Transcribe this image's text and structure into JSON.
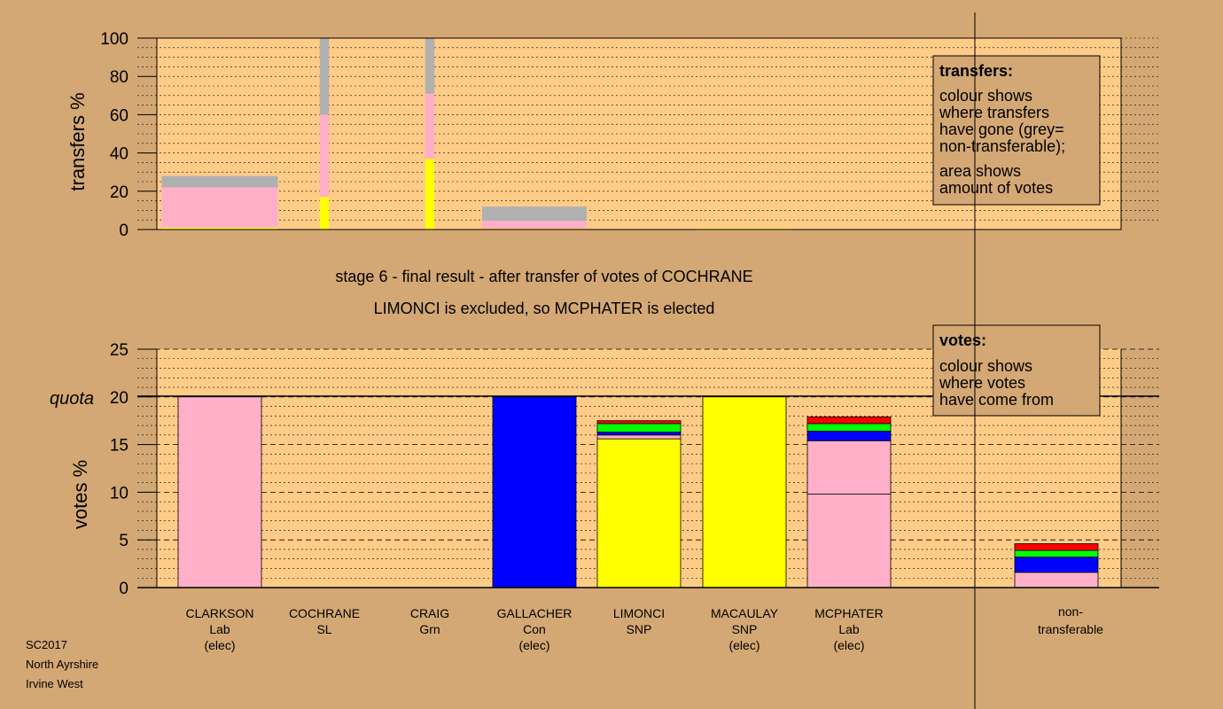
{
  "colors": {
    "background": "#d4a874",
    "plot_bg": "#ffcc88",
    "Lab": "#ffb0c8",
    "Con": "#0000ff",
    "SNP": "#ffff00",
    "Grn": "#00ff00",
    "SL": "#ff0000",
    "nontransferable": "#b0b0b0"
  },
  "stage_title": "stage 6 - final result - after transfer of votes of COCHRANE",
  "stage_subtitle": "LIMONCI is excluded, so MCPHATER is elected",
  "transfers_legend": {
    "title": "transfers:",
    "line1": "colour shows",
    "line2": "where transfers",
    "line3": "have gone (grey=",
    "line4": "non-transferable);",
    "line5": "area shows",
    "line6": "amount of votes"
  },
  "votes_legend": {
    "title": "votes:",
    "line1": "colour shows",
    "line2": "where votes",
    "line3": "have come from"
  },
  "footer": {
    "line1": "SC2017",
    "line2": "North Ayrshire",
    "line3": "Irvine West"
  },
  "chart_data": [
    {
      "type": "bar",
      "name": "transfers",
      "ylabel": "transfers %",
      "ylim": [
        0,
        100
      ],
      "yticks": [
        0,
        20,
        40,
        60,
        80,
        100
      ],
      "grid": true,
      "bars": [
        {
          "candidate": "CLARKSON",
          "width": 1.0,
          "segments": [
            {
              "party": "SNP",
              "value": 1
            },
            {
              "party": "Lab",
              "value": 21
            },
            {
              "party": "nontransferable",
              "value": 6
            }
          ]
        },
        {
          "candidate": "COCHRANE",
          "width": 0.08,
          "segments": [
            {
              "party": "SNP",
              "value": 17
            },
            {
              "party": "Lab",
              "value": 43
            },
            {
              "party": "nontransferable",
              "value": 40
            }
          ]
        },
        {
          "candidate": "CRAIG",
          "width": 0.08,
          "segments": [
            {
              "party": "SNP",
              "value": 37
            },
            {
              "party": "Lab",
              "value": 34
            },
            {
              "party": "nontransferable",
              "value": 29
            }
          ]
        },
        {
          "candidate": "GALLACHER",
          "width": 0.9,
          "segments": [
            {
              "party": "SNP",
              "value": 0.5
            },
            {
              "party": "Lab",
              "value": 4
            },
            {
              "party": "nontransferable",
              "value": 7.5
            }
          ]
        },
        {
          "candidate": "LIMONCI",
          "width": 0,
          "segments": []
        },
        {
          "candidate": "MACAULAY",
          "width": 0.8,
          "segments": [
            {
              "party": "SNP",
              "value": 0.5
            }
          ]
        },
        {
          "candidate": "MCPHATER",
          "width": 0,
          "segments": []
        }
      ]
    },
    {
      "type": "bar",
      "name": "votes",
      "ylabel": "votes %",
      "ylim": [
        0,
        25
      ],
      "yticks": [
        0,
        5,
        10,
        15,
        20,
        25
      ],
      "quota": 20,
      "quota_label": "quota",
      "grid": true,
      "categories": [
        {
          "name": "CLARKSON",
          "party": "Lab",
          "status": "(elec)"
        },
        {
          "name": "COCHRANE",
          "party": "SL",
          "status": ""
        },
        {
          "name": "CRAIG",
          "party": "Grn",
          "status": ""
        },
        {
          "name": "GALLACHER",
          "party": "Con",
          "status": "(elec)"
        },
        {
          "name": "LIMONCI",
          "party": "SNP",
          "status": ""
        },
        {
          "name": "MACAULAY",
          "party": "SNP",
          "status": "(elec)"
        },
        {
          "name": "MCPHATER",
          "party": "Lab",
          "status": "(elec)"
        }
      ],
      "nontransferable_label_1": "non-",
      "nontransferable_label_2": "transferable",
      "bars": [
        {
          "candidate": "CLARKSON",
          "segments": [
            {
              "party": "Lab",
              "value": 20
            }
          ]
        },
        {
          "candidate": "COCHRANE",
          "segments": []
        },
        {
          "candidate": "CRAIG",
          "segments": []
        },
        {
          "candidate": "GALLACHER",
          "segments": [
            {
              "party": "Con",
              "value": 20
            }
          ]
        },
        {
          "candidate": "LIMONCI",
          "segments": [
            {
              "party": "SNP",
              "value": 15.6
            },
            {
              "party": "Lab",
              "value": 0.4
            },
            {
              "party": "Con",
              "value": 0.3
            },
            {
              "party": "Grn",
              "value": 0.9
            },
            {
              "party": "SL",
              "value": 0.3
            }
          ]
        },
        {
          "candidate": "MACAULAY",
          "segments": [
            {
              "party": "SNP",
              "value": 20
            }
          ]
        },
        {
          "candidate": "MCPHATER",
          "segments": [
            {
              "party": "Lab",
              "value": 9.8
            },
            {
              "party": "Lab",
              "value": 5.6
            },
            {
              "party": "Con",
              "value": 1.0
            },
            {
              "party": "Grn",
              "value": 0.8
            },
            {
              "party": "SL",
              "value": 0.7
            }
          ]
        },
        {
          "candidate": "non-transferable",
          "segments": [
            {
              "party": "Lab",
              "value": 1.6
            },
            {
              "party": "Con",
              "value": 1.6
            },
            {
              "party": "Grn",
              "value": 0.7
            },
            {
              "party": "SL",
              "value": 0.7
            }
          ]
        }
      ]
    }
  ]
}
